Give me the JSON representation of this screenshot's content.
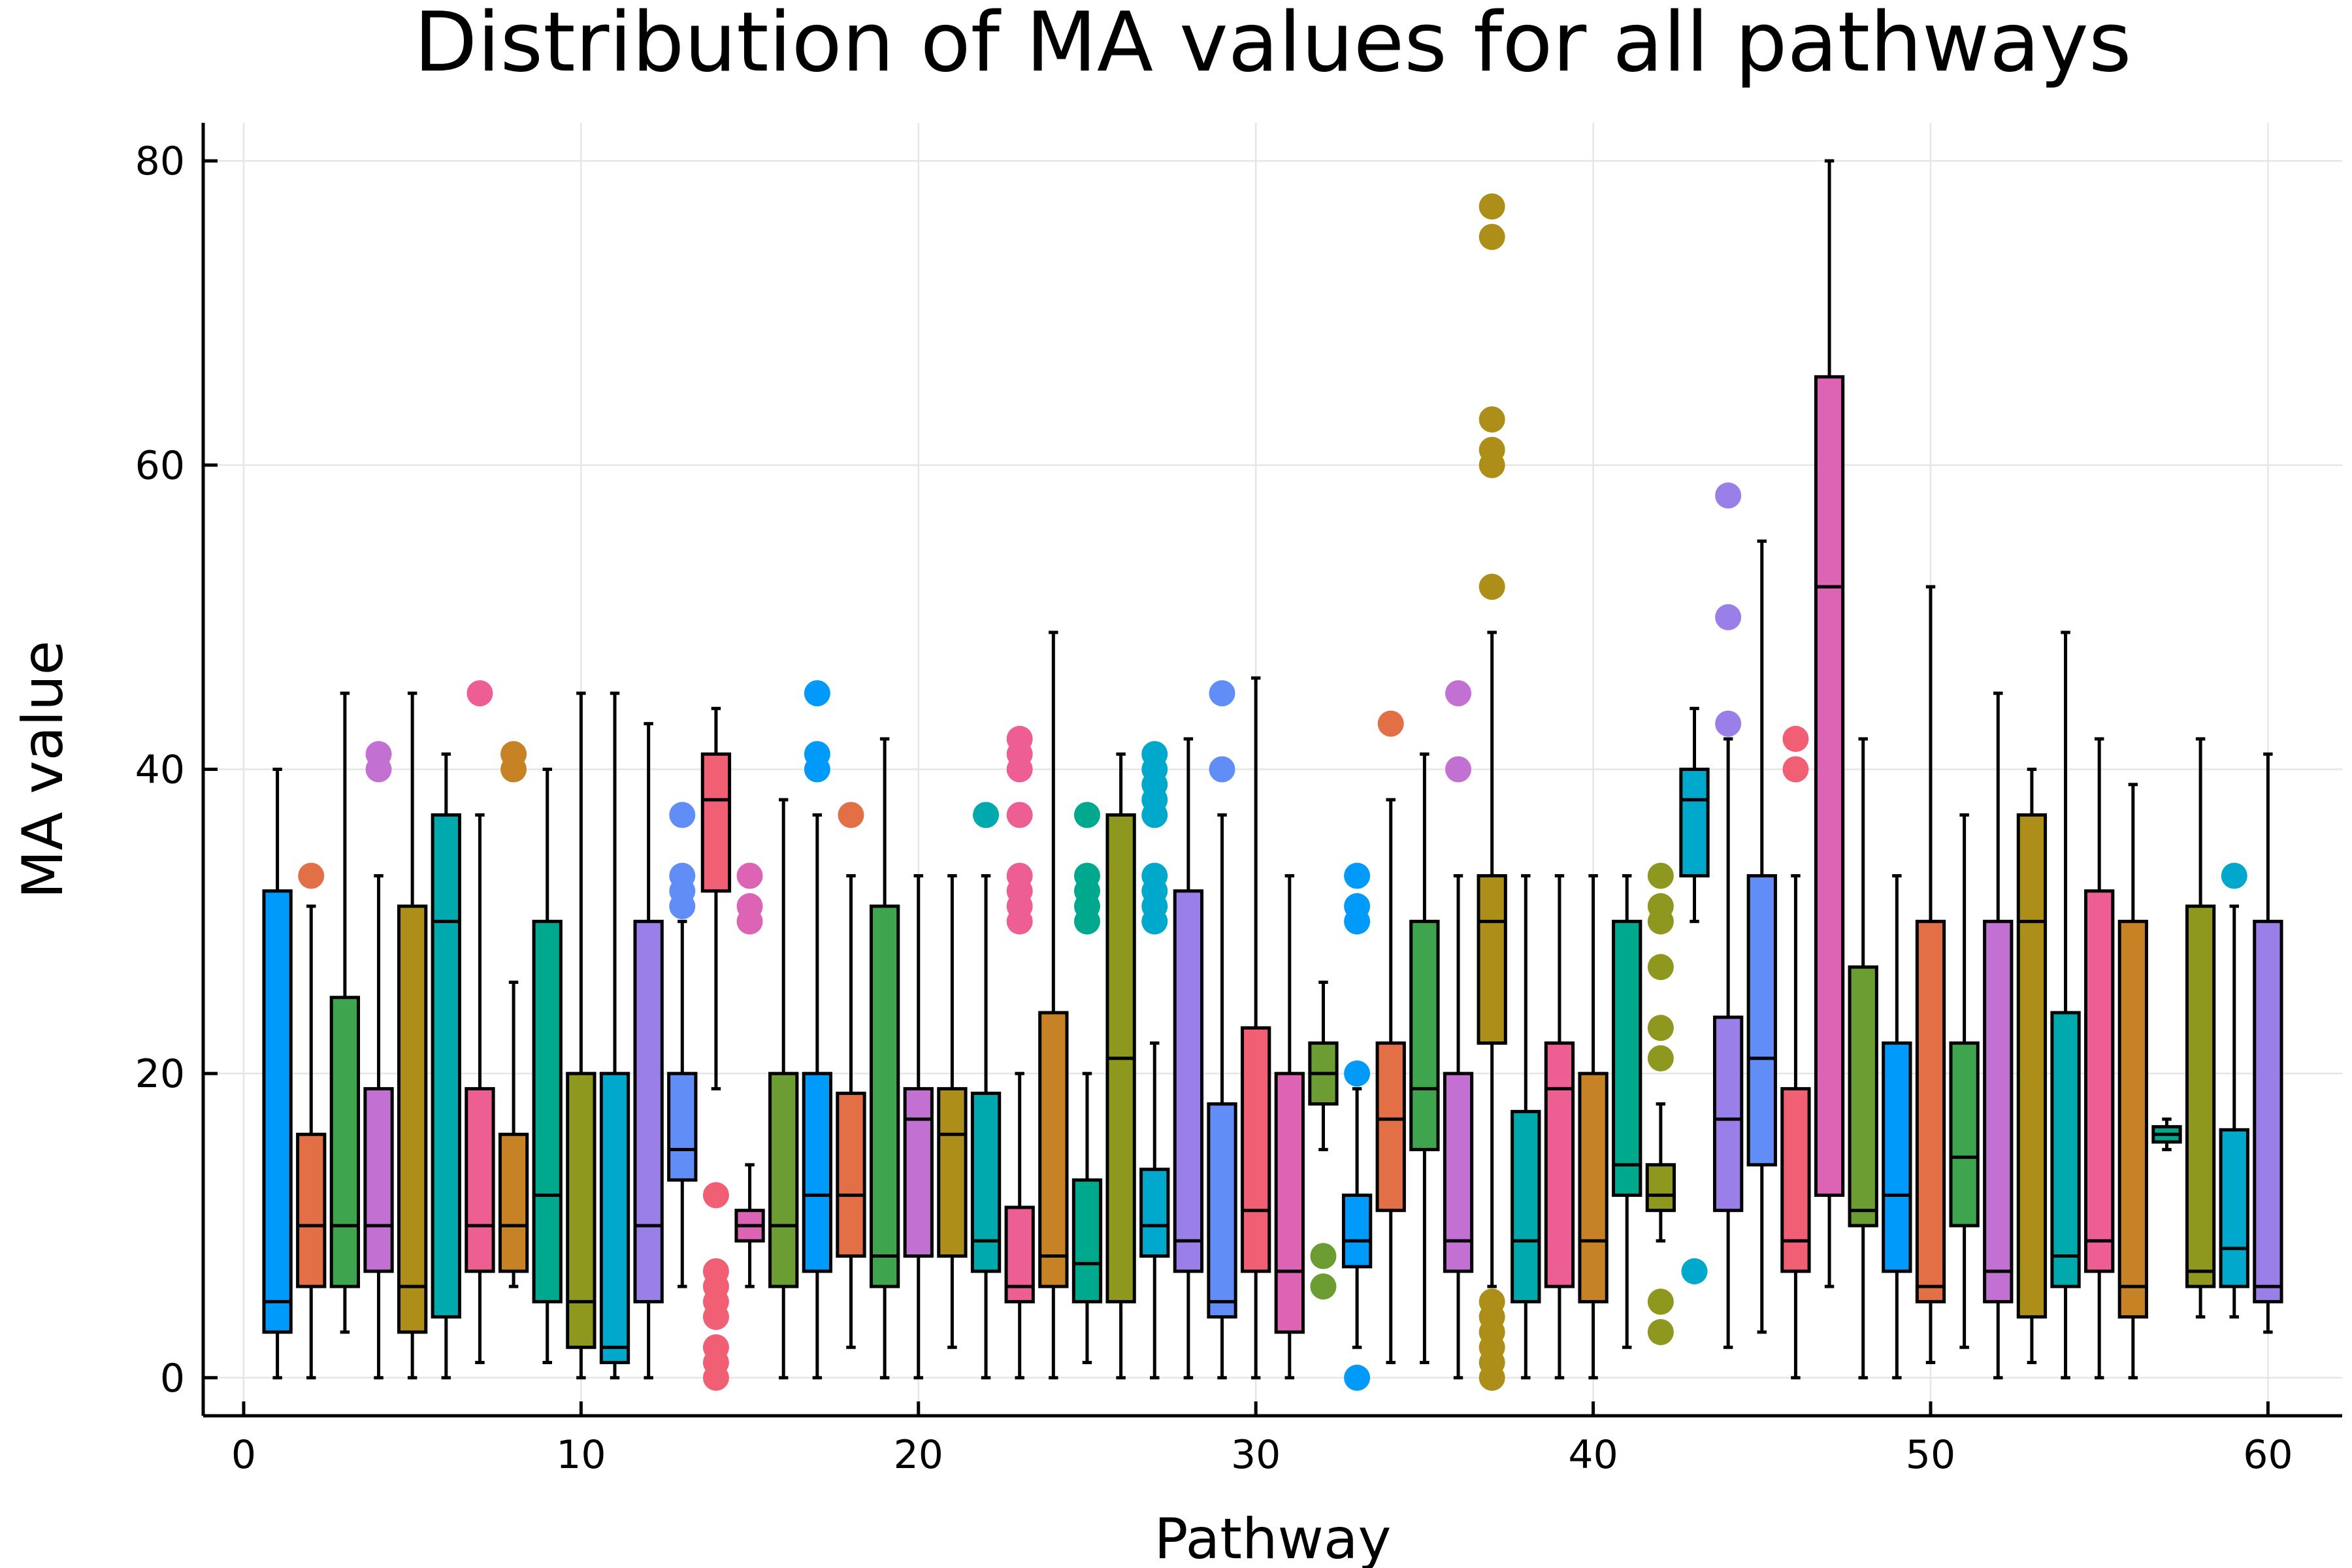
{
  "chart_data": {
    "type": "box",
    "title": "Distribution of MA values for all pathways",
    "xlabel": "Pathway",
    "ylabel": "MA value",
    "xlim": [
      -1.2,
      62.2
    ],
    "ylim": [
      -2.5,
      82.5
    ],
    "xticks": [
      0,
      10,
      20,
      30,
      40,
      50,
      60
    ],
    "yticks": [
      0,
      20,
      40,
      60,
      80
    ],
    "xtick_labels": [
      "0",
      "10",
      "20",
      "30",
      "40",
      "50",
      "60"
    ],
    "ytick_labels": [
      "0",
      "20",
      "40",
      "60",
      "80"
    ],
    "grid": true,
    "legend": "none",
    "colors": [
      "#009AFA",
      "#E36F47",
      "#3EA44E",
      "#C271D2",
      "#AC8E18",
      "#00A9AD",
      "#ED5E93",
      "#C68225",
      "#00A98D",
      "#8E971E",
      "#00A8CB",
      "#9B7FE9",
      "#618DF6",
      "#F05F73",
      "#DD64B5",
      "#6B9D32"
    ],
    "series": [
      {
        "x": 1,
        "whisker_low": 0,
        "q1": 3,
        "median": 5,
        "q3": 32,
        "whisker_high": 40,
        "outliers": []
      },
      {
        "x": 2,
        "whisker_low": 0,
        "q1": 6,
        "median": 10,
        "q3": 16,
        "whisker_high": 31,
        "outliers": [
          33
        ]
      },
      {
        "x": 3,
        "whisker_low": 3,
        "q1": 6,
        "median": 10,
        "q3": 25,
        "whisker_high": 45,
        "outliers": []
      },
      {
        "x": 4,
        "whisker_low": 0,
        "q1": 7,
        "median": 10,
        "q3": 19,
        "whisker_high": 33,
        "outliers": [
          40,
          41
        ]
      },
      {
        "x": 5,
        "whisker_low": 0,
        "q1": 3,
        "median": 6,
        "q3": 31,
        "whisker_high": 45,
        "outliers": []
      },
      {
        "x": 6,
        "whisker_low": 0,
        "q1": 4,
        "median": 30,
        "q3": 37,
        "whisker_high": 41,
        "outliers": []
      },
      {
        "x": 7,
        "whisker_low": 1,
        "q1": 7,
        "median": 10,
        "q3": 19,
        "whisker_high": 37,
        "outliers": [
          45
        ]
      },
      {
        "x": 8,
        "whisker_low": 6,
        "q1": 7,
        "median": 10,
        "q3": 16,
        "whisker_high": 26,
        "outliers": [
          40,
          41
        ]
      },
      {
        "x": 9,
        "whisker_low": 1,
        "q1": 5,
        "median": 12,
        "q3": 30,
        "whisker_high": 40,
        "outliers": []
      },
      {
        "x": 10,
        "whisker_low": 0,
        "q1": 2,
        "median": 5,
        "q3": 20,
        "whisker_high": 45,
        "outliers": []
      },
      {
        "x": 11,
        "whisker_low": 0,
        "q1": 1,
        "median": 2,
        "q3": 20,
        "whisker_high": 45,
        "outliers": []
      },
      {
        "x": 12,
        "whisker_low": 0,
        "q1": 5,
        "median": 10,
        "q3": 30,
        "whisker_high": 43,
        "outliers": []
      },
      {
        "x": 13,
        "whisker_low": 6,
        "q1": 13,
        "median": 15,
        "q3": 20,
        "whisker_high": 30,
        "outliers": [
          31,
          32,
          33,
          37
        ]
      },
      {
        "x": 14,
        "whisker_low": 19,
        "q1": 32,
        "median": 38,
        "q3": 41,
        "whisker_high": 44,
        "outliers": [
          0,
          1,
          2,
          4,
          5,
          6,
          7,
          12
        ]
      },
      {
        "x": 15,
        "whisker_low": 6,
        "q1": 9,
        "median": 10,
        "q3": 11,
        "whisker_high": 14,
        "outliers": [
          30,
          31,
          33
        ]
      },
      {
        "x": 16,
        "whisker_low": 0,
        "q1": 6,
        "median": 10,
        "q3": 20,
        "whisker_high": 38,
        "outliers": []
      },
      {
        "x": 17,
        "whisker_low": 0,
        "q1": 7,
        "median": 12,
        "q3": 20,
        "whisker_high": 37,
        "outliers": [
          40,
          41,
          45
        ]
      },
      {
        "x": 18,
        "whisker_low": 2,
        "q1": 8,
        "median": 12,
        "q3": 18.7,
        "whisker_high": 33,
        "outliers": [
          37
        ]
      },
      {
        "x": 19,
        "whisker_low": 0,
        "q1": 6,
        "median": 8,
        "q3": 31,
        "whisker_high": 42,
        "outliers": []
      },
      {
        "x": 20,
        "whisker_low": 0,
        "q1": 8,
        "median": 17,
        "q3": 19,
        "whisker_high": 33,
        "outliers": []
      },
      {
        "x": 21,
        "whisker_low": 2,
        "q1": 8,
        "median": 16,
        "q3": 19,
        "whisker_high": 33,
        "outliers": []
      },
      {
        "x": 22,
        "whisker_low": 0,
        "q1": 7,
        "median": 9,
        "q3": 18.7,
        "whisker_high": 33,
        "outliers": [
          37
        ]
      },
      {
        "x": 23,
        "whisker_low": 0,
        "q1": 5,
        "median": 6,
        "q3": 11.2,
        "whisker_high": 20,
        "outliers": [
          30,
          31,
          32,
          33,
          37,
          40,
          41,
          42
        ]
      },
      {
        "x": 24,
        "whisker_low": 0,
        "q1": 6,
        "median": 8,
        "q3": 24,
        "whisker_high": 49,
        "outliers": []
      },
      {
        "x": 25,
        "whisker_low": 1,
        "q1": 5,
        "median": 7.5,
        "q3": 13,
        "whisker_high": 20,
        "outliers": [
          30,
          31,
          32,
          33,
          37
        ]
      },
      {
        "x": 26,
        "whisker_low": 0,
        "q1": 5,
        "median": 21,
        "q3": 37,
        "whisker_high": 41,
        "outliers": []
      },
      {
        "x": 27,
        "whisker_low": 0,
        "q1": 8,
        "median": 10,
        "q3": 13.7,
        "whisker_high": 22,
        "outliers": [
          30,
          31,
          32,
          33,
          37,
          38,
          39,
          40,
          41
        ]
      },
      {
        "x": 28,
        "whisker_low": 0,
        "q1": 7,
        "median": 9,
        "q3": 32,
        "whisker_high": 42,
        "outliers": []
      },
      {
        "x": 29,
        "whisker_low": 0,
        "q1": 4,
        "median": 5,
        "q3": 18,
        "whisker_high": 37,
        "outliers": [
          40,
          45
        ]
      },
      {
        "x": 30,
        "whisker_low": 0,
        "q1": 7,
        "median": 11,
        "q3": 23,
        "whisker_high": 46,
        "outliers": []
      },
      {
        "x": 31,
        "whisker_low": 0,
        "q1": 3,
        "median": 7,
        "q3": 20,
        "whisker_high": 33,
        "outliers": []
      },
      {
        "x": 32,
        "whisker_low": 15,
        "q1": 18,
        "median": 20,
        "q3": 22,
        "whisker_high": 26,
        "outliers": [
          6,
          8
        ]
      },
      {
        "x": 33,
        "whisker_low": 2,
        "q1": 7.3,
        "median": 9,
        "q3": 12,
        "whisker_high": 19,
        "outliers": [
          0,
          20,
          30,
          31,
          33
        ]
      },
      {
        "x": 34,
        "whisker_low": 1,
        "q1": 11,
        "median": 17,
        "q3": 22,
        "whisker_high": 38,
        "outliers": [
          43
        ]
      },
      {
        "x": 35,
        "whisker_low": 1,
        "q1": 15,
        "median": 19,
        "q3": 30,
        "whisker_high": 41,
        "outliers": []
      },
      {
        "x": 36,
        "whisker_low": 0,
        "q1": 7,
        "median": 9,
        "q3": 20,
        "whisker_high": 33,
        "outliers": [
          40,
          45
        ]
      },
      {
        "x": 37,
        "whisker_low": 6,
        "q1": 22,
        "median": 30,
        "q3": 33,
        "whisker_high": 49,
        "outliers": [
          0,
          1,
          2,
          3,
          4,
          5,
          52,
          60,
          61,
          63,
          75,
          77
        ]
      },
      {
        "x": 38,
        "whisker_low": 0,
        "q1": 5,
        "median": 9,
        "q3": 17.5,
        "whisker_high": 33,
        "outliers": []
      },
      {
        "x": 39,
        "whisker_low": 0,
        "q1": 6,
        "median": 19,
        "q3": 22,
        "whisker_high": 33,
        "outliers": []
      },
      {
        "x": 40,
        "whisker_low": 0,
        "q1": 5,
        "median": 9,
        "q3": 20,
        "whisker_high": 33,
        "outliers": []
      },
      {
        "x": 41,
        "whisker_low": 2,
        "q1": 12,
        "median": 14,
        "q3": 30,
        "whisker_high": 33,
        "outliers": []
      },
      {
        "x": 42,
        "whisker_low": 9,
        "q1": 11,
        "median": 12,
        "q3": 14,
        "whisker_high": 18,
        "outliers": [
          3,
          5,
          21,
          23,
          27,
          30,
          31,
          33
        ]
      },
      {
        "x": 43,
        "whisker_low": 30,
        "q1": 33,
        "median": 38,
        "q3": 40,
        "whisker_high": 44,
        "outliers": [
          7
        ]
      },
      {
        "x": 44,
        "whisker_low": 2,
        "q1": 11,
        "median": 17,
        "q3": 23.7,
        "whisker_high": 42,
        "outliers": [
          43,
          50,
          58
        ]
      },
      {
        "x": 45,
        "whisker_low": 3,
        "q1": 14,
        "median": 21,
        "q3": 33,
        "whisker_high": 55,
        "outliers": []
      },
      {
        "x": 46,
        "whisker_low": 0,
        "q1": 7,
        "median": 9,
        "q3": 19,
        "whisker_high": 33,
        "outliers": [
          40,
          42
        ]
      },
      {
        "x": 47,
        "whisker_low": 6,
        "q1": 12,
        "median": 52,
        "q3": 65.8,
        "whisker_high": 80,
        "outliers": []
      },
      {
        "x": 48,
        "whisker_low": 0,
        "q1": 10,
        "median": 11,
        "q3": 27,
        "whisker_high": 42,
        "outliers": []
      },
      {
        "x": 49,
        "whisker_low": 0,
        "q1": 7,
        "median": 12,
        "q3": 22,
        "whisker_high": 33,
        "outliers": []
      },
      {
        "x": 50,
        "whisker_low": 1,
        "q1": 5,
        "median": 6,
        "q3": 30,
        "whisker_high": 52,
        "outliers": []
      },
      {
        "x": 51,
        "whisker_low": 2,
        "q1": 10,
        "median": 14.5,
        "q3": 22,
        "whisker_high": 37,
        "outliers": []
      },
      {
        "x": 52,
        "whisker_low": 0,
        "q1": 5,
        "median": 7,
        "q3": 30,
        "whisker_high": 45,
        "outliers": []
      },
      {
        "x": 53,
        "whisker_low": 1,
        "q1": 4,
        "median": 30,
        "q3": 37,
        "whisker_high": 40,
        "outliers": []
      },
      {
        "x": 54,
        "whisker_low": 0,
        "q1": 6,
        "median": 8,
        "q3": 24,
        "whisker_high": 49,
        "outliers": []
      },
      {
        "x": 55,
        "whisker_low": 0,
        "q1": 7,
        "median": 9,
        "q3": 32,
        "whisker_high": 42,
        "outliers": []
      },
      {
        "x": 56,
        "whisker_low": 0,
        "q1": 4,
        "median": 6,
        "q3": 30,
        "whisker_high": 39,
        "outliers": []
      },
      {
        "x": 57,
        "whisker_low": 15,
        "q1": 15.5,
        "median": 16,
        "q3": 16.5,
        "whisker_high": 17,
        "outliers": []
      },
      {
        "x": 58,
        "whisker_low": 4,
        "q1": 6,
        "median": 7,
        "q3": 31,
        "whisker_high": 42,
        "outliers": []
      },
      {
        "x": 59,
        "whisker_low": 4,
        "q1": 6,
        "median": 8.5,
        "q3": 16.3,
        "whisker_high": 31,
        "outliers": [
          33
        ]
      },
      {
        "x": 60,
        "whisker_low": 3,
        "q1": 5,
        "median": 6,
        "q3": 30,
        "whisker_high": 41,
        "outliers": []
      }
    ]
  }
}
